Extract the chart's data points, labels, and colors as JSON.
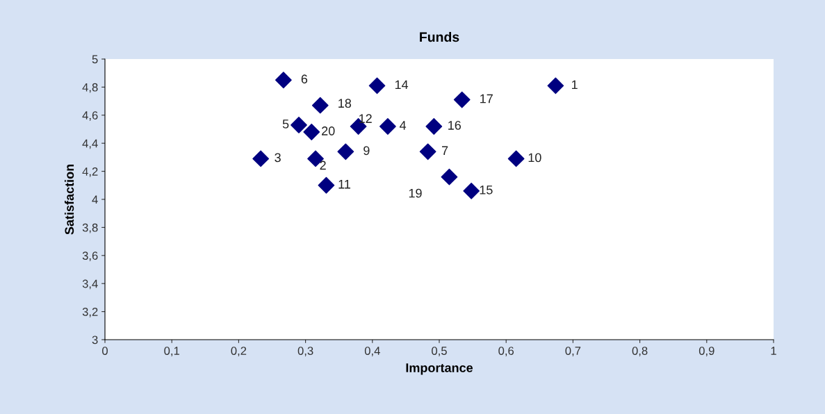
{
  "chart_data": {
    "type": "scatter",
    "title": "Funds",
    "xlabel": "Importance",
    "ylabel": "Satisfaction",
    "series": [
      {
        "color": "#000080",
        "x": [
          0.674,
          0.315,
          0.233,
          0.423,
          0.29,
          0.267,
          0.483,
          0.36,
          0.615,
          0.331,
          0.379,
          0.407,
          0.548,
          0.492,
          0.534,
          0.322,
          0.515,
          0.309
        ],
        "values": [
          4.81,
          4.29,
          4.29,
          4.52,
          4.53,
          4.85,
          4.34,
          4.34,
          4.29,
          4.1,
          4.52,
          4.81,
          4.06,
          4.52,
          4.71,
          4.67,
          4.16,
          4.48
        ]
      }
    ],
    "annotations": [
      {
        "text": "1",
        "x": 0.674,
        "y": 4.81
      },
      {
        "text": "2",
        "x": 0.315,
        "y": 4.29
      },
      {
        "text": "3",
        "x": 0.233,
        "y": 4.29
      },
      {
        "text": "4",
        "x": 0.423,
        "y": 4.52
      },
      {
        "text": "5",
        "x": 0.29,
        "y": 4.53
      },
      {
        "text": "6",
        "x": 0.267,
        "y": 4.85
      },
      {
        "text": "7",
        "x": 0.483,
        "y": 4.34
      },
      {
        "text": "9",
        "x": 0.36,
        "y": 4.34
      },
      {
        "text": "10",
        "x": 0.615,
        "y": 4.29
      },
      {
        "text": "11",
        "x": 0.331,
        "y": 4.1
      },
      {
        "text": "12",
        "x": 0.379,
        "y": 4.52
      },
      {
        "text": "14",
        "x": 0.407,
        "y": 4.81
      },
      {
        "text": "15",
        "x": 0.548,
        "y": 4.06
      },
      {
        "text": "16",
        "x": 0.492,
        "y": 4.52
      },
      {
        "text": "17",
        "x": 0.534,
        "y": 4.71
      },
      {
        "text": "18",
        "x": 0.322,
        "y": 4.67
      },
      {
        "text": "19",
        "x": 0.515,
        "y": 4.16
      },
      {
        "text": "20",
        "x": 0.309,
        "y": 4.48
      }
    ],
    "marker": "diamond",
    "grid": false,
    "legend": false,
    "xlim": [
      0,
      1
    ],
    "xticks": [
      0,
      {
        "value": 0.1,
        "label": "0,1"
      },
      {
        "value": 0.2,
        "label": "0,2"
      },
      {
        "value": 0.3,
        "label": "0,3"
      },
      {
        "value": 0.4,
        "label": "0,4"
      },
      {
        "value": 0.5,
        "label": "0,5"
      },
      {
        "value": 0.6,
        "label": "0,6"
      },
      {
        "value": 0.7,
        "label": "0,7"
      },
      {
        "value": 0.8,
        "label": "0,8"
      },
      {
        "value": 0.9,
        "label": "0,9"
      },
      1
    ],
    "ylim": [
      3,
      5
    ],
    "yticks": [
      3,
      {
        "value": 3.2,
        "label": "3,2"
      },
      {
        "value": 3.4,
        "label": "3,4"
      },
      {
        "value": 3.6,
        "label": "3,6"
      },
      {
        "value": 3.8,
        "label": "3,8"
      },
      4,
      {
        "value": 4.2,
        "label": "4,2"
      },
      {
        "value": 4.4,
        "label": "4,4"
      },
      {
        "value": 4.6,
        "label": "4,6"
      },
      {
        "value": 4.8,
        "label": "4,8"
      },
      5
    ]
  }
}
